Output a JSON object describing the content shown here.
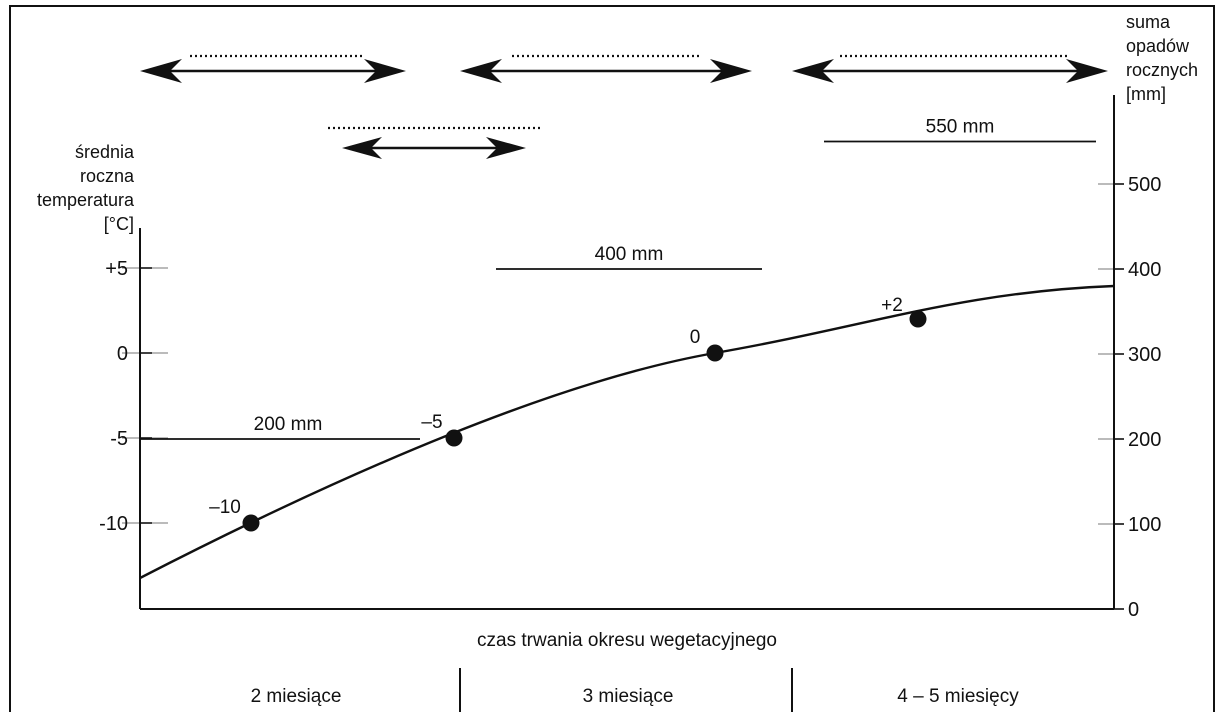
{
  "left_axis": {
    "title_lines": [
      "średnia",
      "roczna",
      "temperatura",
      "[°C]"
    ],
    "ticks": [
      {
        "value": 5,
        "label": "+5"
      },
      {
        "value": 0,
        "label": "0"
      },
      {
        "value": -5,
        "label": "-5"
      },
      {
        "value": -10,
        "label": "-10"
      }
    ]
  },
  "right_axis": {
    "title_lines": [
      "suma",
      "opadów",
      "rocznych",
      "[mm]"
    ],
    "ticks": [
      {
        "value": 0,
        "label": "0"
      },
      {
        "value": 100,
        "label": "100"
      },
      {
        "value": 200,
        "label": "200"
      },
      {
        "value": 300,
        "label": "300"
      },
      {
        "value": 400,
        "label": "400"
      },
      {
        "value": 500,
        "label": "500"
      }
    ]
  },
  "precipitation_lines": [
    {
      "value": 200,
      "label": "200 mm"
    },
    {
      "value": 400,
      "label": "400 mm"
    },
    {
      "value": 550,
      "label": "550 mm"
    }
  ],
  "temperature_points": [
    {
      "value": -10,
      "label": "–10"
    },
    {
      "value": -5,
      "label": "–5"
    },
    {
      "value": 0,
      "label": "0"
    },
    {
      "value": 2,
      "label": "+2"
    }
  ],
  "x_axis_title": "czas trwania okresu wegetacyjnego",
  "periods": [
    "2 miesiące",
    "3 miesiące",
    "4 – 5 miesięcy"
  ]
}
